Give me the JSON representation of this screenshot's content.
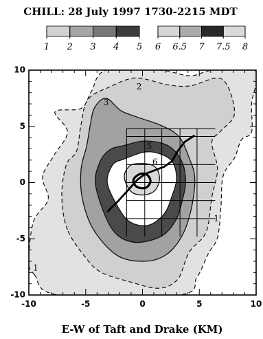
{
  "chart_data": {
    "type": "contour",
    "title": "CHILL: 28 July 1997 1730-2215 MDT",
    "xlabel": "E-W of Taft and Drake (KM)",
    "ylabel": "",
    "xlim": [
      -10,
      10
    ],
    "ylim": [
      -10,
      10
    ],
    "xticks": [
      -10,
      -5,
      0,
      5,
      10
    ],
    "yticks": [
      -10,
      -5,
      0,
      5,
      10
    ],
    "grid": false,
    "legend": {
      "placement": "top",
      "labels": [
        "1",
        "2",
        "3",
        "4",
        "5",
        "6",
        "6.5",
        "7",
        "7.5",
        "8"
      ],
      "colors": [
        "#ececec",
        "#d2d2d2",
        "#a6a6a6",
        "#777777",
        "#3c3c3c",
        "#f0f0f0",
        "#d6d6d6",
        "#acacac",
        "#282828",
        "#dadada"
      ]
    },
    "contour_labels": [
      {
        "text": "2",
        "x": -0.3,
        "y": 8.5
      },
      {
        "text": "3",
        "x": -3.2,
        "y": 7.1
      },
      {
        "text": "5",
        "x": 0.6,
        "y": 3.2
      },
      {
        "text": "6",
        "x": 1.1,
        "y": 1.8
      },
      {
        "text": "1",
        "x": 6.5,
        "y": -3.2
      },
      {
        "text": "1",
        "x": -9.4,
        "y": -7.6
      }
    ],
    "contours": [
      {
        "level": 1,
        "fill": "#e2e2e2",
        "dashed": true,
        "points": [
          [
            -9.5,
            -8.2
          ],
          [
            -10,
            -7
          ],
          [
            -9.6,
            -3.5
          ],
          [
            -8.3,
            -1.5
          ],
          [
            -8.8,
            0.5
          ],
          [
            -7.8,
            2.4
          ],
          [
            -6.6,
            4.5
          ],
          [
            -7.7,
            6.3
          ],
          [
            -5.4,
            6.6
          ],
          [
            -4.5,
            8.1
          ],
          [
            -3.2,
            10
          ],
          [
            1.5,
            10
          ],
          [
            4.2,
            9.5
          ],
          [
            6.2,
            10
          ],
          [
            9.9,
            10
          ],
          [
            9.6,
            7
          ],
          [
            9.6,
            4.5
          ],
          [
            8.7,
            3.8
          ],
          [
            8.1,
            2.2
          ],
          [
            7.1,
            0.6
          ],
          [
            6.9,
            -2.2
          ],
          [
            6.6,
            -4.9
          ],
          [
            5.8,
            -6.3
          ],
          [
            4.8,
            -8.4
          ],
          [
            3.2,
            -10
          ],
          [
            -7.4,
            -10
          ]
        ]
      },
      {
        "level": 2,
        "fill": "#d0d0d0",
        "dashed": true,
        "points": [
          [
            -6.6,
            -4.2
          ],
          [
            -7.1,
            -1.2
          ],
          [
            -6.7,
            1.6
          ],
          [
            -5.8,
            2.8
          ],
          [
            -5.4,
            5.2
          ],
          [
            -4.8,
            7.4
          ],
          [
            -2.9,
            8.5
          ],
          [
            -0.6,
            9.3
          ],
          [
            2.2,
            8.7
          ],
          [
            4.2,
            8.6
          ],
          [
            7,
            9.2
          ],
          [
            8.1,
            6.2
          ],
          [
            6.9,
            4.6
          ],
          [
            6.1,
            3.6
          ],
          [
            6.6,
            1.2
          ],
          [
            6.1,
            -1.3
          ],
          [
            5.6,
            -4.4
          ],
          [
            4.1,
            -6.2
          ],
          [
            3.1,
            -8.6
          ],
          [
            1.4,
            -9.4
          ],
          [
            -1.2,
            -8.8
          ],
          [
            -3.6,
            -8
          ],
          [
            -4.9,
            -6.8
          ]
        ]
      },
      {
        "level": 3,
        "fill": "#a2a2a2",
        "dashed": false,
        "points": [
          [
            -5.3,
            -1.4
          ],
          [
            -5.4,
            1.2
          ],
          [
            -4.9,
            3.3
          ],
          [
            -4.6,
            5.1
          ],
          [
            -4.2,
            6.7
          ],
          [
            -3.2,
            7.5
          ],
          [
            -1.9,
            6.4
          ],
          [
            -0.4,
            5.8
          ],
          [
            1.6,
            5.1
          ],
          [
            3.2,
            4.1
          ],
          [
            4.1,
            2.2
          ],
          [
            4.6,
            0.4
          ],
          [
            4.3,
            -2.3
          ],
          [
            3.5,
            -4.7
          ],
          [
            2.1,
            -6.4
          ],
          [
            0.2,
            -7
          ],
          [
            -2.2,
            -6.5
          ],
          [
            -4.3,
            -4.2
          ]
        ]
      },
      {
        "level": 4,
        "fill": "#4a4a4a",
        "dashed": false,
        "points": [
          [
            -4.1,
            -0.4
          ],
          [
            -3.8,
            1.7
          ],
          [
            -2.9,
            2.9
          ],
          [
            -1.6,
            3.3
          ],
          [
            0.2,
            3.7
          ],
          [
            2.2,
            3.3
          ],
          [
            3.4,
            2
          ],
          [
            3.8,
            0.2
          ],
          [
            3.5,
            -1.6
          ],
          [
            2.9,
            -3.4
          ],
          [
            1.6,
            -4.8
          ],
          [
            -0.8,
            -5.3
          ],
          [
            -2.7,
            -4.1
          ]
        ]
      },
      {
        "level": 5,
        "fill": "#ffffff",
        "dashed": false,
        "points": [
          [
            -3.1,
            0
          ],
          [
            -2.6,
            1.6
          ],
          [
            -1.6,
            2.1
          ],
          [
            0.1,
            2.7
          ],
          [
            1.4,
            2.6
          ],
          [
            2.6,
            1.9
          ],
          [
            3,
            0.4
          ],
          [
            2.6,
            -1.2
          ],
          [
            1.9,
            -2.8
          ],
          [
            0.5,
            -3.8
          ],
          [
            -1.1,
            -3.5
          ],
          [
            -2.2,
            -2.1
          ]
        ]
      },
      {
        "level": 6,
        "fill": "#d8d8d8",
        "dashed": false,
        "points": [
          [
            -1.6,
            0.5
          ],
          [
            -1.1,
            1.5
          ],
          [
            0,
            1.7
          ],
          [
            1.1,
            1.4
          ],
          [
            1.5,
            0.4
          ],
          [
            1.1,
            -0.7
          ],
          [
            0.1,
            -1.1
          ],
          [
            -1,
            -0.8
          ]
        ]
      },
      {
        "level": 7,
        "fill": "#e6e6e6",
        "dashed": false,
        "points": [
          [
            -0.8,
            0.2
          ],
          [
            -0.5,
            0.6
          ],
          [
            0,
            0.8
          ],
          [
            0.5,
            0.6
          ],
          [
            0.7,
            0.1
          ],
          [
            0.4,
            -0.4
          ],
          [
            -0.1,
            -0.5
          ],
          [
            -0.6,
            -0.3
          ]
        ]
      }
    ],
    "grid_lines": {
      "vertical_x": [
        -1.4,
        0.2,
        1.7,
        3.3,
        4.8
      ],
      "vertical_y_range": [
        -4.8,
        4.8
      ],
      "horizontal_y": [
        4.8,
        4.1,
        1.6,
        0,
        -1.6,
        -3.2
      ],
      "horizontal_x_range": [
        -1.4,
        6.4
      ]
    },
    "track": [
      [
        -3.1,
        -2.6
      ],
      [
        -2.1,
        -1.6
      ],
      [
        -1.2,
        -0.6
      ],
      [
        -0.4,
        0.3
      ],
      [
        0.3,
        0.8
      ],
      [
        1.1,
        1.1
      ],
      [
        1.9,
        1.4
      ],
      [
        2.6,
        1.9
      ],
      [
        3.1,
        2.8
      ],
      [
        3.7,
        3.6
      ],
      [
        4.6,
        4.2
      ]
    ]
  }
}
